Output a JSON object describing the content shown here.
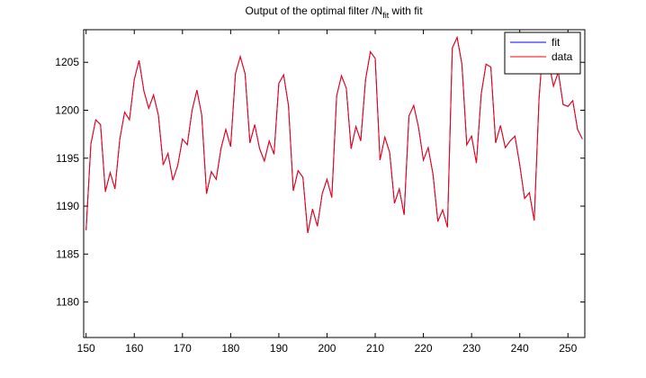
{
  "chart_data": {
    "type": "line",
    "title_parts": [
      "Output of the optimal filter /N",
      "fit",
      " with fit"
    ],
    "x": [
      150,
      151,
      152,
      153,
      154,
      155,
      156,
      157,
      158,
      159,
      160,
      161,
      162,
      163,
      164,
      165,
      166,
      167,
      168,
      169,
      170,
      171,
      172,
      173,
      174,
      175,
      176,
      177,
      178,
      179,
      180,
      181,
      182,
      183,
      184,
      185,
      186,
      187,
      188,
      189,
      190,
      191,
      192,
      193,
      194,
      195,
      196,
      197,
      198,
      199,
      200,
      201,
      202,
      203,
      204,
      205,
      206,
      207,
      208,
      209,
      210,
      211,
      212,
      213,
      214,
      215,
      216,
      217,
      218,
      219,
      220,
      221,
      222,
      223,
      224,
      225,
      226,
      227,
      228,
      229,
      230,
      231,
      232,
      233,
      234,
      235,
      236,
      237,
      238,
      239,
      240,
      241,
      242,
      243,
      244,
      245,
      246,
      247,
      248,
      249,
      250,
      251,
      252,
      253
    ],
    "series": [
      {
        "name": "fit",
        "color": "#0000ff",
        "values": [
          1187.5,
          1196.5,
          1199,
          1198.5,
          1191.5,
          1193.5,
          1191.8,
          1197,
          1199.8,
          1199,
          1203.2,
          1205.2,
          1202,
          1200.2,
          1201.6,
          1199.5,
          1194.3,
          1195.5,
          1192.7,
          1194.2,
          1197,
          1196.4,
          1200,
          1202.1,
          1199.5,
          1191.3,
          1193.6,
          1192.8,
          1196,
          1198,
          1196.2,
          1203.8,
          1205.6,
          1203.8,
          1196.6,
          1198.5,
          1196,
          1194.7,
          1196.8,
          1195.4,
          1202.8,
          1203.7,
          1200.5,
          1191.6,
          1193.7,
          1193,
          1187.2,
          1189.7,
          1187.9,
          1191.3,
          1192.8,
          1190.9,
          1201.5,
          1203.6,
          1202.3,
          1196,
          1198.3,
          1196.8,
          1203.2,
          1206.1,
          1205.4,
          1194.8,
          1197.2,
          1195.6,
          1190.3,
          1191.8,
          1189.1,
          1199.4,
          1200.5,
          1198.2,
          1194.8,
          1196.1,
          1193.3,
          1188.4,
          1189.6,
          1187.8,
          1206.5,
          1207.6,
          1204.8,
          1196.4,
          1197.3,
          1194.5,
          1201.7,
          1204.8,
          1204.5,
          1196.6,
          1198.4,
          1196.1,
          1196.8,
          1197.3,
          1194.3,
          1190.8,
          1191.4,
          1188.5,
          1201.2,
          1208,
          1205,
          1202.5,
          1204,
          1200.6,
          1200.4,
          1201,
          1198,
          1197
        ]
      },
      {
        "name": "data",
        "color": "#ff0000",
        "values": [
          1187.5,
          1196.5,
          1199,
          1198.5,
          1191.5,
          1193.5,
          1191.8,
          1197,
          1199.8,
          1199,
          1203.2,
          1205.2,
          1202,
          1200.2,
          1201.6,
          1199.5,
          1194.3,
          1195.5,
          1192.7,
          1194.2,
          1197,
          1196.4,
          1200,
          1202.1,
          1199.5,
          1191.3,
          1193.6,
          1192.8,
          1196,
          1198,
          1196.2,
          1203.8,
          1205.6,
          1203.8,
          1196.6,
          1198.5,
          1196,
          1194.7,
          1196.8,
          1195.4,
          1202.8,
          1203.7,
          1200.5,
          1191.6,
          1193.7,
          1193,
          1187.2,
          1189.7,
          1187.9,
          1191.3,
          1192.8,
          1190.9,
          1201.5,
          1203.6,
          1202.3,
          1196,
          1198.3,
          1196.8,
          1203.2,
          1206.1,
          1205.4,
          1194.8,
          1197.2,
          1195.6,
          1190.3,
          1191.8,
          1189.1,
          1199.4,
          1200.5,
          1198.2,
          1194.8,
          1196.1,
          1193.3,
          1188.4,
          1189.6,
          1187.8,
          1206.5,
          1207.6,
          1204.8,
          1196.4,
          1197.3,
          1194.5,
          1201.7,
          1204.8,
          1204.5,
          1196.6,
          1198.4,
          1196.1,
          1196.8,
          1197.3,
          1194.3,
          1190.8,
          1191.4,
          1188.5,
          1201.2,
          1208,
          1205,
          1202.5,
          1204,
          1200.6,
          1200.4,
          1201,
          1198,
          1197
        ]
      }
    ],
    "xlim": [
      149.5,
      253.5
    ],
    "xticks": [
      150,
      160,
      170,
      180,
      190,
      200,
      210,
      220,
      230,
      240,
      250
    ],
    "ylim": [
      1176.3,
      1208.4
    ],
    "yticks": [
      1180,
      1185,
      1190,
      1195,
      1200,
      1205
    ],
    "grid": false,
    "legend": "upper right"
  }
}
